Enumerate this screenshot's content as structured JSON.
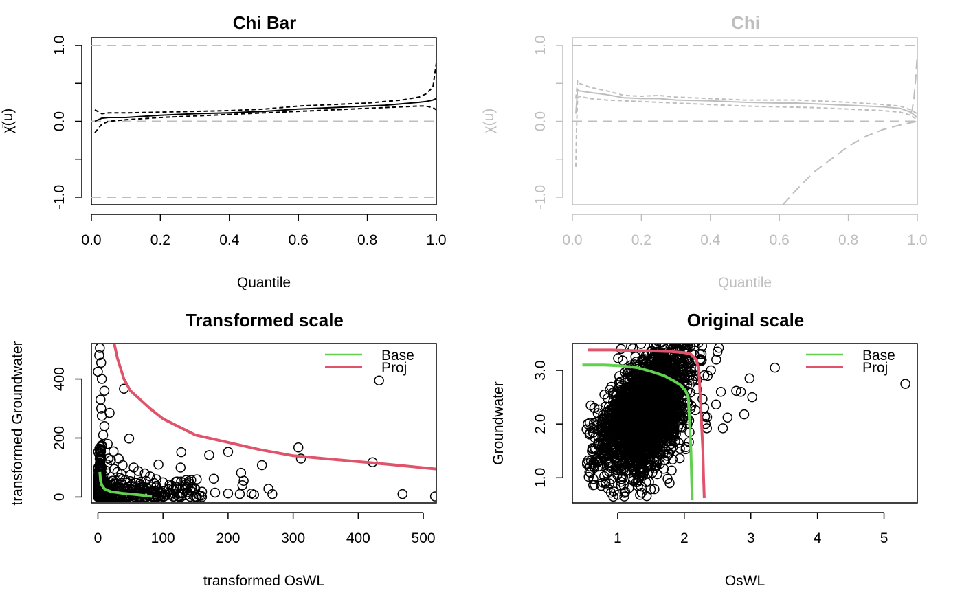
{
  "chart_data": [
    {
      "type": "line",
      "panel": "chi-bar",
      "title": "Chi Bar",
      "xlabel": "Quantile",
      "ylabel": "χ̄(u)",
      "xlim": [
        0,
        1
      ],
      "ylim": [
        -1.1,
        1.1
      ],
      "xticks": [
        "0.0",
        "0.2",
        "0.4",
        "0.6",
        "0.8",
        "1.0"
      ],
      "yticks": [
        "-1.0",
        "0.0",
        "1.0"
      ],
      "color": "#000000",
      "reference_lines": [
        -1,
        0,
        1
      ],
      "series": [
        {
          "name": "estimate",
          "style": "solid",
          "x": [
            0.01,
            0.03,
            0.05,
            0.1,
            0.2,
            0.3,
            0.4,
            0.5,
            0.6,
            0.7,
            0.8,
            0.85,
            0.9,
            0.95,
            0.97,
            0.99,
            1.0
          ],
          "y": [
            0.0,
            0.04,
            0.05,
            0.05,
            0.08,
            0.1,
            0.11,
            0.13,
            0.16,
            0.18,
            0.2,
            0.21,
            0.23,
            0.25,
            0.26,
            0.28,
            0.3
          ]
        },
        {
          "name": "upper",
          "style": "dashed",
          "x": [
            0.01,
            0.03,
            0.05,
            0.1,
            0.2,
            0.3,
            0.4,
            0.5,
            0.6,
            0.7,
            0.8,
            0.85,
            0.9,
            0.95,
            0.97,
            0.99,
            1.0
          ],
          "y": [
            0.15,
            0.1,
            0.11,
            0.11,
            0.12,
            0.13,
            0.14,
            0.16,
            0.2,
            0.22,
            0.24,
            0.26,
            0.28,
            0.32,
            0.36,
            0.45,
            0.77
          ]
        },
        {
          "name": "lower",
          "style": "dashed",
          "x": [
            0.01,
            0.03,
            0.05,
            0.1,
            0.2,
            0.3,
            0.4,
            0.5,
            0.6,
            0.7,
            0.8,
            0.85,
            0.9,
            0.95,
            0.97,
            0.99,
            1.0
          ],
          "y": [
            -0.15,
            -0.04,
            0.0,
            0.02,
            0.05,
            0.07,
            0.09,
            0.11,
            0.13,
            0.15,
            0.17,
            0.18,
            0.19,
            0.2,
            0.2,
            0.18,
            0.15
          ]
        }
      ]
    },
    {
      "type": "line",
      "panel": "chi",
      "title": "Chi",
      "xlabel": "Quantile",
      "ylabel": "χ(u)",
      "xlim": [
        0,
        1
      ],
      "ylim": [
        -1.1,
        1.1
      ],
      "xticks": [
        "0.0",
        "0.2",
        "0.4",
        "0.6",
        "0.8",
        "1.0"
      ],
      "yticks": [
        "-1.0",
        "0.0",
        "1.0"
      ],
      "color": "#bebebe",
      "reference_lines": [
        0,
        1
      ],
      "series": [
        {
          "name": "estimate",
          "style": "solid",
          "x": [
            0.01,
            0.015,
            0.02,
            0.05,
            0.1,
            0.15,
            0.2,
            0.25,
            0.3,
            0.4,
            0.5,
            0.6,
            0.65,
            0.7,
            0.8,
            0.9,
            0.95,
            0.98,
            1.0
          ],
          "y": [
            0.1,
            0.42,
            0.4,
            0.38,
            0.35,
            0.31,
            0.3,
            0.3,
            0.28,
            0.27,
            0.25,
            0.24,
            0.24,
            0.23,
            0.21,
            0.19,
            0.17,
            0.12,
            0.05
          ]
        },
        {
          "name": "upper",
          "style": "dashed",
          "x": [
            0.01,
            0.015,
            0.02,
            0.05,
            0.1,
            0.15,
            0.2,
            0.25,
            0.3,
            0.4,
            0.5,
            0.6,
            0.65,
            0.7,
            0.8,
            0.9,
            0.95,
            0.98,
            1.0
          ],
          "y": [
            0.3,
            0.53,
            0.5,
            0.45,
            0.4,
            0.34,
            0.33,
            0.34,
            0.32,
            0.3,
            0.28,
            0.28,
            0.28,
            0.27,
            0.25,
            0.22,
            0.2,
            0.15,
            0.1
          ]
        },
        {
          "name": "lower",
          "style": "dashed",
          "x": [
            0.01,
            0.012,
            0.015,
            0.02,
            0.05,
            0.1,
            0.15,
            0.2,
            0.3,
            0.4,
            0.5,
            0.6,
            0.7,
            0.8,
            0.9,
            0.95,
            0.98,
            1.0
          ],
          "y": [
            -0.6,
            -0.1,
            0.3,
            0.33,
            0.3,
            0.28,
            0.27,
            0.26,
            0.24,
            0.22,
            0.2,
            0.19,
            0.18,
            0.16,
            0.14,
            0.12,
            0.08,
            0.02
          ]
        },
        {
          "name": "upper-bound",
          "style": "dashed",
          "x": [
            0.98,
            0.985,
            0.99,
            0.995,
            1.0
          ],
          "y": [
            0.1,
            0.15,
            0.3,
            0.55,
            0.9
          ]
        },
        {
          "name": "lower-bound",
          "style": "dashed",
          "x": [
            0.61,
            0.65,
            0.7,
            0.75,
            0.8,
            0.85,
            0.9,
            0.95,
            1.0
          ],
          "y": [
            -1.1,
            -0.9,
            -0.67,
            -0.5,
            -0.33,
            -0.2,
            -0.11,
            -0.05,
            0.0
          ]
        }
      ]
    },
    {
      "type": "scatter",
      "panel": "transformed",
      "title": "Transformed scale",
      "xlabel": "transformed OsWL",
      "ylabel": "transformed Groundwater",
      "xlim": [
        -10,
        520
      ],
      "ylim": [
        -20,
        520
      ],
      "xticks": [
        "0",
        "100",
        "200",
        "300",
        "400",
        "500"
      ],
      "yticks": [
        "0",
        "200",
        "400"
      ],
      "legend": {
        "position": "top-right",
        "entries": [
          {
            "label": "Base",
            "color": "#61d04f"
          },
          {
            "label": "Proj",
            "color": "#df536b"
          }
        ]
      },
      "points": [
        [
          432,
          395
        ],
        [
          308,
          168
        ],
        [
          312,
          130
        ],
        [
          422,
          118
        ],
        [
          468,
          10
        ],
        [
          518,
          2
        ],
        [
          252,
          108
        ],
        [
          262,
          28
        ],
        [
          200,
          153
        ],
        [
          171,
          142
        ],
        [
          128,
          152
        ],
        [
          127,
          100
        ],
        [
          220,
          82
        ],
        [
          224,
          55
        ],
        [
          222,
          40
        ],
        [
          236,
          12
        ],
        [
          268,
          10
        ],
        [
          178,
          62
        ],
        [
          152,
          60
        ],
        [
          93,
          110
        ],
        [
          48,
          198
        ],
        [
          40,
          367
        ],
        [
          18,
          285
        ],
        [
          3,
          505
        ],
        [
          2,
          480
        ],
        [
          5,
          455
        ],
        [
          0,
          425
        ],
        [
          6,
          400
        ],
        [
          10,
          360
        ],
        [
          4,
          330
        ],
        [
          5,
          300
        ],
        [
          6,
          275
        ],
        [
          10,
          240
        ],
        [
          8,
          210
        ],
        [
          15,
          180
        ],
        [
          24,
          155
        ],
        [
          32,
          130
        ],
        [
          38,
          108
        ],
        [
          55,
          100
        ],
        [
          62,
          88
        ],
        [
          72,
          80
        ],
        [
          80,
          70
        ],
        [
          90,
          60
        ],
        [
          100,
          50
        ],
        [
          110,
          42
        ],
        [
          120,
          35
        ],
        [
          130,
          28
        ],
        [
          142,
          22
        ],
        [
          160,
          18
        ],
        [
          180,
          15
        ],
        [
          200,
          12
        ],
        [
          218,
          10
        ],
        [
          240,
          8
        ],
        [
          2,
          0
        ],
        [
          4,
          8
        ],
        [
          6,
          14
        ],
        [
          8,
          22
        ],
        [
          10,
          30
        ],
        [
          12,
          38
        ],
        [
          3,
          50
        ],
        [
          5,
          62
        ],
        [
          2,
          75
        ],
        [
          4,
          88
        ],
        [
          6,
          100
        ],
        [
          3,
          115
        ],
        [
          5,
          130
        ],
        [
          2,
          145
        ],
        [
          4,
          160
        ],
        [
          6,
          172
        ],
        [
          15,
          10
        ],
        [
          20,
          5
        ],
        [
          25,
          15
        ],
        [
          30,
          8
        ],
        [
          35,
          20
        ],
        [
          40,
          12
        ],
        [
          45,
          28
        ],
        [
          50,
          18
        ],
        [
          55,
          6
        ],
        [
          60,
          25
        ],
        [
          65,
          14
        ],
        [
          70,
          32
        ],
        [
          75,
          9
        ],
        [
          85,
          20
        ],
        [
          95,
          14
        ],
        [
          105,
          8
        ],
        [
          115,
          24
        ],
        [
          125,
          12
        ],
        [
          135,
          6
        ],
        [
          145,
          18
        ],
        [
          18,
          40
        ],
        [
          22,
          55
        ],
        [
          28,
          45
        ],
        [
          34,
          65
        ],
        [
          42,
          58
        ],
        [
          50,
          75
        ],
        [
          58,
          48
        ],
        [
          66,
          40
        ],
        [
          74,
          55
        ],
        [
          82,
          35
        ],
        [
          10,
          70
        ],
        [
          12,
          90
        ],
        [
          14,
          110
        ],
        [
          16,
          130
        ],
        [
          20,
          125
        ],
        [
          25,
          95
        ],
        [
          30,
          85
        ],
        [
          36,
          78
        ],
        [
          8,
          65
        ],
        [
          9,
          45
        ]
      ],
      "series": [
        {
          "name": "Base",
          "color": "#61d04f",
          "x": [
            3,
            4,
            6,
            10,
            20,
            40,
            60,
            83
          ],
          "y": [
            85,
            55,
            40,
            28,
            18,
            12,
            8,
            2
          ]
        },
        {
          "name": "Proj",
          "color": "#df536b",
          "x": [
            25,
            30,
            40,
            50,
            60,
            80,
            100,
            150,
            200,
            250,
            300,
            350,
            400,
            450,
            520
          ],
          "y": [
            520,
            470,
            400,
            360,
            340,
            300,
            265,
            210,
            185,
            160,
            140,
            130,
            120,
            110,
            95
          ]
        }
      ]
    },
    {
      "type": "scatter",
      "panel": "original",
      "title": "Original scale",
      "xlabel": "OsWL",
      "ylabel": "Groundwater",
      "xlim": [
        0.32,
        5.5
      ],
      "ylim": [
        0.53,
        3.5
      ],
      "xticks": [
        "1",
        "2",
        "3",
        "4",
        "5"
      ],
      "yticks": [
        "1.0",
        "2.0",
        "3.0"
      ],
      "legend": {
        "position": "top-right",
        "entries": [
          {
            "label": "Base",
            "color": "#61d04f"
          },
          {
            "label": "Proj",
            "color": "#df536b"
          }
        ]
      },
      "cloud": {
        "center": [
          1.38,
          2.25
        ],
        "spread": [
          0.32,
          0.55
        ],
        "count": 2400
      },
      "points": [
        [
          5.32,
          2.75
        ],
        [
          3.36,
          3.05
        ],
        [
          2.98,
          2.85
        ],
        [
          2.78,
          2.62
        ],
        [
          2.85,
          2.6
        ],
        [
          3.02,
          2.5
        ],
        [
          2.9,
          2.18
        ],
        [
          2.65,
          2.12
        ],
        [
          2.58,
          1.92
        ],
        [
          2.55,
          2.6
        ],
        [
          2.52,
          3.42
        ],
        [
          2.5,
          3.35
        ],
        [
          2.48,
          3.2
        ],
        [
          2.4,
          3.0
        ],
        [
          2.35,
          2.9
        ],
        [
          2.3,
          2.3
        ],
        [
          2.32,
          2.0
        ],
        [
          0.55,
          2.0
        ],
        [
          0.62,
          1.55
        ],
        [
          0.7,
          2.2
        ],
        [
          0.75,
          0.85
        ],
        [
          0.85,
          0.8
        ],
        [
          0.9,
          0.72
        ],
        [
          1.0,
          0.68
        ],
        [
          1.1,
          0.65
        ],
        [
          1.78,
          0.9
        ],
        [
          1.75,
          0.98
        ],
        [
          1.6,
          3.55
        ],
        [
          1.55,
          3.58
        ],
        [
          0.8,
          2.55
        ],
        [
          0.65,
          2.3
        ],
        [
          1.2,
          3.45
        ],
        [
          1.05,
          3.4
        ]
      ],
      "series": [
        {
          "name": "Base",
          "color": "#61d04f",
          "x": [
            0.47,
            0.8,
            1.1,
            1.3,
            1.5,
            1.7,
            1.85,
            1.95,
            2.02,
            2.06,
            2.08,
            2.1,
            2.11,
            2.12
          ],
          "y": [
            3.1,
            3.1,
            3.08,
            3.05,
            2.98,
            2.9,
            2.8,
            2.72,
            2.62,
            2.5,
            2.0,
            1.5,
            1.0,
            0.58
          ]
        },
        {
          "name": "Proj",
          "color": "#df536b",
          "x": [
            0.55,
            0.9,
            1.2,
            1.5,
            1.8,
            2.0,
            2.1,
            2.18,
            2.22,
            2.24,
            2.26,
            2.28,
            2.29,
            2.3
          ],
          "y": [
            3.38,
            3.38,
            3.37,
            3.36,
            3.35,
            3.33,
            3.3,
            3.2,
            3.0,
            2.5,
            2.0,
            1.5,
            1.0,
            0.62
          ]
        }
      ]
    }
  ]
}
